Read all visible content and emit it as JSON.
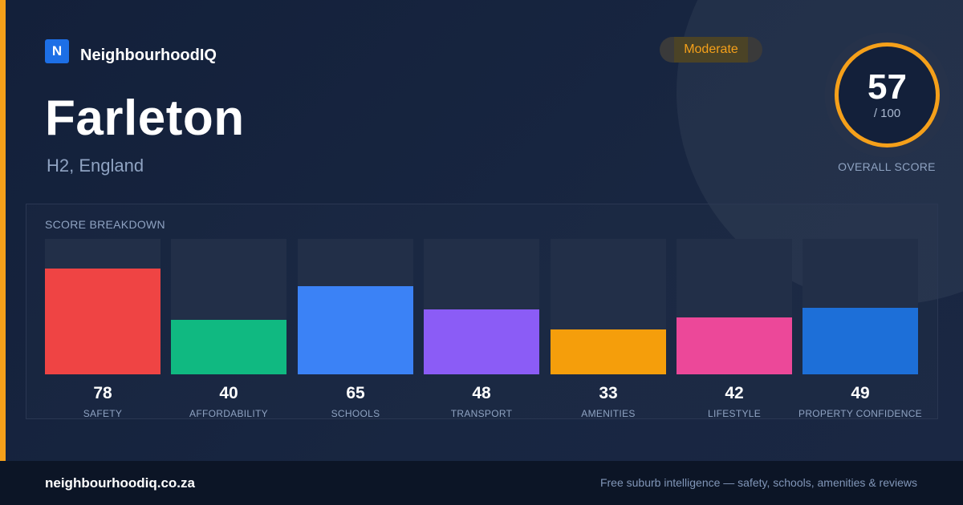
{
  "brand": {
    "logo_letter": "N",
    "name": "NeighbourhoodIQ"
  },
  "location": {
    "name": "Farleton",
    "region": "H2, England"
  },
  "rating_badge": {
    "label": "Moderate",
    "color": "#f5a01a"
  },
  "overall": {
    "score": "57",
    "max": "/ 100",
    "label": "OVERALL SCORE",
    "fraction": 0.57,
    "ring_color": "#f5a01a"
  },
  "breakdown": {
    "title": "SCORE BREAKDOWN",
    "max_score": 100,
    "items": [
      {
        "label": "SAFETY",
        "value": 78,
        "color": "#ef4444"
      },
      {
        "label": "AFFORDABILITY",
        "value": 40,
        "color": "#10b981"
      },
      {
        "label": "SCHOOLS",
        "value": 65,
        "color": "#3b82f6"
      },
      {
        "label": "TRANSPORT",
        "value": 48,
        "color": "#8b5cf6"
      },
      {
        "label": "AMENITIES",
        "value": 33,
        "color": "#f59e0b"
      },
      {
        "label": "LIFESTYLE",
        "value": 42,
        "color": "#ec4899"
      },
      {
        "label": "PROPERTY CONFIDENCE",
        "value": 49,
        "color": "#1d6fd8"
      }
    ]
  },
  "footer": {
    "url": "neighbourhoodiq.co.za",
    "tagline": "Free suburb intelligence — safety, schools, amenities & reviews"
  }
}
